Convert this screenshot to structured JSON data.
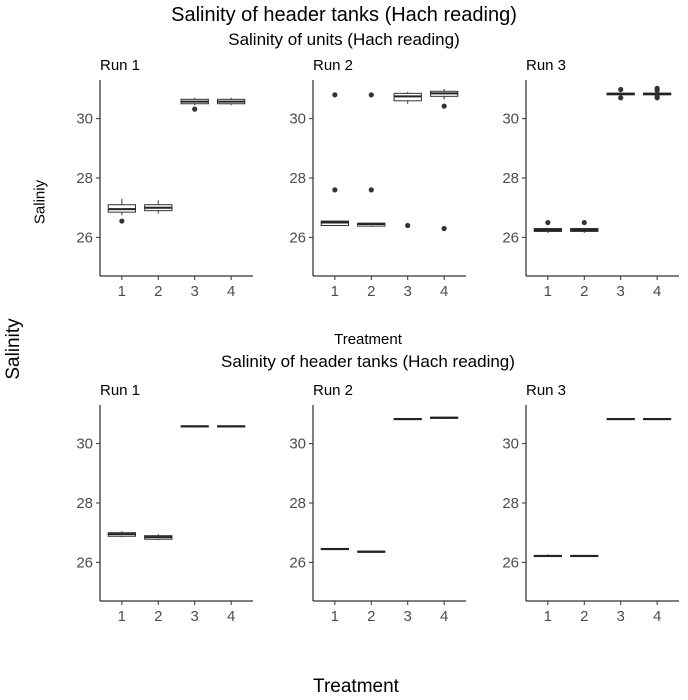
{
  "main_title": "Salinity of header tanks (Hach reading)",
  "outer_ylabel": "Salinity",
  "outer_xlabel": "Treatment",
  "chart_data": [
    {
      "type": "box",
      "title": "Salinity of units (Hach reading)",
      "ylabel": "Saliniy",
      "xlabel": "Treatment",
      "categories": [
        "1",
        "2",
        "3",
        "4"
      ],
      "ylim": [
        24.7,
        31.3
      ],
      "yticks": [
        26,
        28,
        30
      ],
      "grid": false,
      "panels": [
        {
          "label": "Run 1",
          "boxes": [
            {
              "q1": 26.85,
              "median": 26.95,
              "q3": 27.1,
              "whisker_low": 26.75,
              "whisker_high": 27.3,
              "outliers": [
                26.55
              ]
            },
            {
              "q1": 26.9,
              "median": 27.0,
              "q3": 27.1,
              "whisker_low": 26.8,
              "whisker_high": 27.25,
              "outliers": []
            },
            {
              "q1": 30.5,
              "median": 30.57,
              "q3": 30.65,
              "whisker_low": 30.45,
              "whisker_high": 30.7,
              "outliers": [
                30.32
              ]
            },
            {
              "q1": 30.5,
              "median": 30.57,
              "q3": 30.65,
              "whisker_low": 30.45,
              "whisker_high": 30.7,
              "outliers": []
            }
          ]
        },
        {
          "label": "Run 2",
          "boxes": [
            {
              "q1": 26.4,
              "median": 26.5,
              "q3": 26.55,
              "whisker_low": 26.4,
              "whisker_high": 26.55,
              "outliers": [
                30.8,
                27.6
              ]
            },
            {
              "q1": 26.38,
              "median": 26.45,
              "q3": 26.48,
              "whisker_low": 26.35,
              "whisker_high": 26.5,
              "outliers": [
                30.8,
                27.6
              ]
            },
            {
              "q1": 30.6,
              "median": 30.75,
              "q3": 30.85,
              "whisker_low": 30.5,
              "whisker_high": 30.9,
              "outliers": [
                26.4
              ]
            },
            {
              "q1": 30.75,
              "median": 30.85,
              "q3": 30.92,
              "whisker_low": 30.65,
              "whisker_high": 31.0,
              "outliers": [
                30.42,
                26.3
              ]
            }
          ]
        },
        {
          "label": "Run 3",
          "boxes": [
            {
              "q1": 26.2,
              "median": 26.25,
              "q3": 26.3,
              "whisker_low": 26.15,
              "whisker_high": 26.32,
              "outliers": [
                26.5
              ]
            },
            {
              "q1": 26.2,
              "median": 26.25,
              "q3": 26.3,
              "whisker_low": 26.15,
              "whisker_high": 26.32,
              "outliers": [
                26.5
              ]
            },
            {
              "q1": 30.8,
              "median": 30.83,
              "q3": 30.86,
              "whisker_low": 30.78,
              "whisker_high": 30.88,
              "outliers": [
                30.7,
                30.98
              ]
            },
            {
              "q1": 30.8,
              "median": 30.83,
              "q3": 30.86,
              "whisker_low": 30.78,
              "whisker_high": 30.88,
              "outliers": [
                30.7,
                30.75,
                30.95,
                31.02
              ]
            }
          ]
        }
      ]
    },
    {
      "type": "box",
      "title": "Salinity of header tanks (Hach reading)",
      "ylabel": "",
      "xlabel": "",
      "categories": [
        "1",
        "2",
        "3",
        "4"
      ],
      "ylim": [
        24.7,
        31.3
      ],
      "yticks": [
        26,
        28,
        30
      ],
      "grid": false,
      "panels": [
        {
          "label": "Run 1",
          "boxes": [
            {
              "q1": 26.88,
              "median": 26.95,
              "q3": 27.0,
              "whisker_low": 26.85,
              "whisker_high": 27.05,
              "outliers": []
            },
            {
              "q1": 26.78,
              "median": 26.85,
              "q3": 26.9,
              "whisker_low": 26.75,
              "whisker_high": 26.95,
              "outliers": []
            },
            {
              "q1": 30.56,
              "median": 30.58,
              "q3": 30.6,
              "whisker_low": 30.55,
              "whisker_high": 30.61,
              "outliers": []
            },
            {
              "q1": 30.56,
              "median": 30.58,
              "q3": 30.6,
              "whisker_low": 30.55,
              "whisker_high": 30.61,
              "outliers": []
            }
          ]
        },
        {
          "label": "Run 2",
          "boxes": [
            {
              "q1": 26.43,
              "median": 26.45,
              "q3": 26.47,
              "whisker_low": 26.42,
              "whisker_high": 26.48,
              "outliers": []
            },
            {
              "q1": 26.34,
              "median": 26.36,
              "q3": 26.38,
              "whisker_low": 26.33,
              "whisker_high": 26.39,
              "outliers": []
            },
            {
              "q1": 30.82,
              "median": 30.83,
              "q3": 30.84,
              "whisker_low": 30.81,
              "whisker_high": 30.85,
              "outliers": []
            },
            {
              "q1": 30.85,
              "median": 30.87,
              "q3": 30.89,
              "whisker_low": 30.84,
              "whisker_high": 30.9,
              "outliers": []
            }
          ]
        },
        {
          "label": "Run 3",
          "boxes": [
            {
              "q1": 26.21,
              "median": 26.22,
              "q3": 26.23,
              "whisker_low": 26.2,
              "whisker_high": 26.27,
              "outliers": []
            },
            {
              "q1": 26.21,
              "median": 26.22,
              "q3": 26.23,
              "whisker_low": 26.2,
              "whisker_high": 26.24,
              "outliers": []
            },
            {
              "q1": 30.82,
              "median": 30.83,
              "q3": 30.84,
              "whisker_low": 30.81,
              "whisker_high": 30.85,
              "outliers": []
            },
            {
              "q1": 30.82,
              "median": 30.83,
              "q3": 30.84,
              "whisker_low": 30.81,
              "whisker_high": 30.85,
              "outliers": []
            }
          ]
        }
      ]
    }
  ]
}
